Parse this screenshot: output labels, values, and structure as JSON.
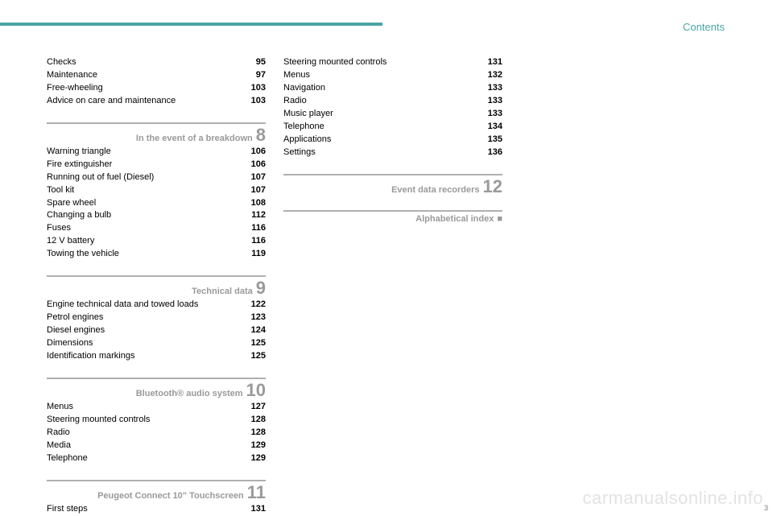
{
  "header": {
    "label": "Contents"
  },
  "col1": {
    "top_entries": [
      {
        "label": "Checks",
        "page": "95"
      },
      {
        "label": "Maintenance",
        "page": "97"
      },
      {
        "label": "Free-wheeling",
        "page": "103"
      },
      {
        "label": "Advice on care and maintenance",
        "page": "103"
      }
    ],
    "sections": [
      {
        "title": "In the event of a breakdown",
        "num": "8",
        "entries": [
          {
            "label": "Warning triangle",
            "page": "106"
          },
          {
            "label": "Fire extinguisher",
            "page": "106"
          },
          {
            "label": "Running out of fuel (Diesel)",
            "page": "107"
          },
          {
            "label": "Tool kit",
            "page": "107"
          },
          {
            "label": "Spare wheel",
            "page": "108"
          },
          {
            "label": "Changing a bulb",
            "page": "112"
          },
          {
            "label": "Fuses",
            "page": "116"
          },
          {
            "label": "12 V battery",
            "page": "116"
          },
          {
            "label": "Towing the vehicle",
            "page": "119"
          }
        ]
      },
      {
        "title": "Technical data",
        "num": "9",
        "entries": [
          {
            "label": "Engine technical data and towed loads",
            "page": "122"
          },
          {
            "label": "Petrol engines",
            "page": "123"
          },
          {
            "label": "Diesel engines",
            "page": "124"
          },
          {
            "label": "Dimensions",
            "page": "125"
          },
          {
            "label": "Identification markings",
            "page": "125"
          }
        ]
      },
      {
        "title": "Bluetooth® audio system",
        "num": "10",
        "entries": [
          {
            "label": "Menus",
            "page": "127"
          },
          {
            "label": "Steering mounted controls",
            "page": "128"
          },
          {
            "label": "Radio",
            "page": "128"
          },
          {
            "label": "Media",
            "page": "129"
          },
          {
            "label": "Telephone",
            "page": "129"
          }
        ]
      },
      {
        "title": "Peugeot Connect 10\" Touchscreen",
        "num": "11",
        "entries": [
          {
            "label": "First steps",
            "page": "131"
          }
        ]
      }
    ]
  },
  "col2": {
    "top_entries": [
      {
        "label": "Steering mounted controls",
        "page": "131"
      },
      {
        "label": "Menus",
        "page": "132"
      },
      {
        "label": "Navigation",
        "page": "133"
      },
      {
        "label": "Radio",
        "page": "133"
      },
      {
        "label": "Music player",
        "page": "133"
      },
      {
        "label": "Telephone",
        "page": "134"
      },
      {
        "label": "Applications",
        "page": "135"
      },
      {
        "label": "Settings",
        "page": "136"
      }
    ],
    "sections": [
      {
        "title": "Event data recorders",
        "num": "12",
        "entries": []
      },
      {
        "title": "Alphabetical index",
        "bullet": "■",
        "entries": []
      }
    ]
  },
  "watermark": "carmanualsonline.info",
  "corner_page": "3",
  "colors": {
    "accent": "#4aa5a5",
    "section_grey": "#9a9a9a",
    "rule_grey": "#b0b0b0",
    "text": "#000000",
    "watermark": "#e3e3e3",
    "background": "#ffffff"
  }
}
